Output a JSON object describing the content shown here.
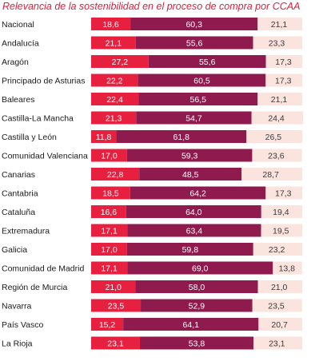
{
  "chart_data": {
    "type": "bar",
    "orientation": "horizontal",
    "stacked": true,
    "percent": true,
    "title": "Relevancia de la sostenibilidad en el proceso de compra por CCAA",
    "xlabel": "",
    "ylabel": "",
    "grid": false,
    "legend": "none",
    "colors": [
      "#e8203f",
      "#8f1a4e",
      "#fbe3de"
    ],
    "categories": [
      "Nacional",
      "Andalucía",
      "Aragón",
      "Principado de Asturias",
      "Baleares",
      "Castilla-La Mancha",
      "Castilla y León",
      "Comunidad Valenciana",
      "Canarias",
      "Cantabria",
      "Cataluña",
      "Extremadura",
      "Galicia",
      "Comunidad de Madrid",
      "Región de Murcia",
      "Navarra",
      "País Vasco",
      "La Rioja"
    ],
    "series": [
      {
        "values": [
          18.6,
          21.1,
          27.2,
          22.2,
          22.4,
          21.3,
          11.8,
          17.0,
          22.8,
          18.5,
          16.6,
          17.1,
          17.0,
          17.1,
          21.0,
          23.5,
          15.2,
          23.1
        ],
        "labels": [
          "18,6",
          "21,1",
          "27,2",
          "22,2",
          "22,4",
          "21,3",
          "11,8",
          "17,0",
          "22,8",
          "18,5",
          "16,6",
          "17,1",
          "17,0",
          "17,1",
          "21,0",
          "23,5",
          "15,2",
          "23,1"
        ]
      },
      {
        "values": [
          60.3,
          55.6,
          55.6,
          60.5,
          56.5,
          54.7,
          61.8,
          59.3,
          48.5,
          64.2,
          64.0,
          63.4,
          59.8,
          69.0,
          58.0,
          52.9,
          64.1,
          53.8
        ],
        "labels": [
          "60,3",
          "55,6",
          "55,6",
          "60,5",
          "56,5",
          "54,7",
          "61,8",
          "59,3",
          "48,5",
          "64,2",
          "64,0",
          "63,4",
          "59,8",
          "69,0",
          "58,0",
          "52,9",
          "64,1",
          "53,8"
        ]
      },
      {
        "values": [
          21.1,
          23.3,
          17.3,
          17.3,
          21.1,
          24.4,
          26.5,
          23.6,
          28.7,
          17.3,
          19.4,
          19.5,
          23.2,
          13.8,
          21.0,
          23.5,
          20.7,
          23.1
        ],
        "labels": [
          "21,1",
          "23,3",
          "17,3",
          "17,3",
          "21,1",
          "24,4",
          "26,5",
          "23,6",
          "28,7",
          "17,3",
          "19,4",
          "19,5",
          "23,2",
          "13,8",
          "21,0",
          "23,5",
          "20,7",
          "23,1"
        ]
      }
    ]
  }
}
